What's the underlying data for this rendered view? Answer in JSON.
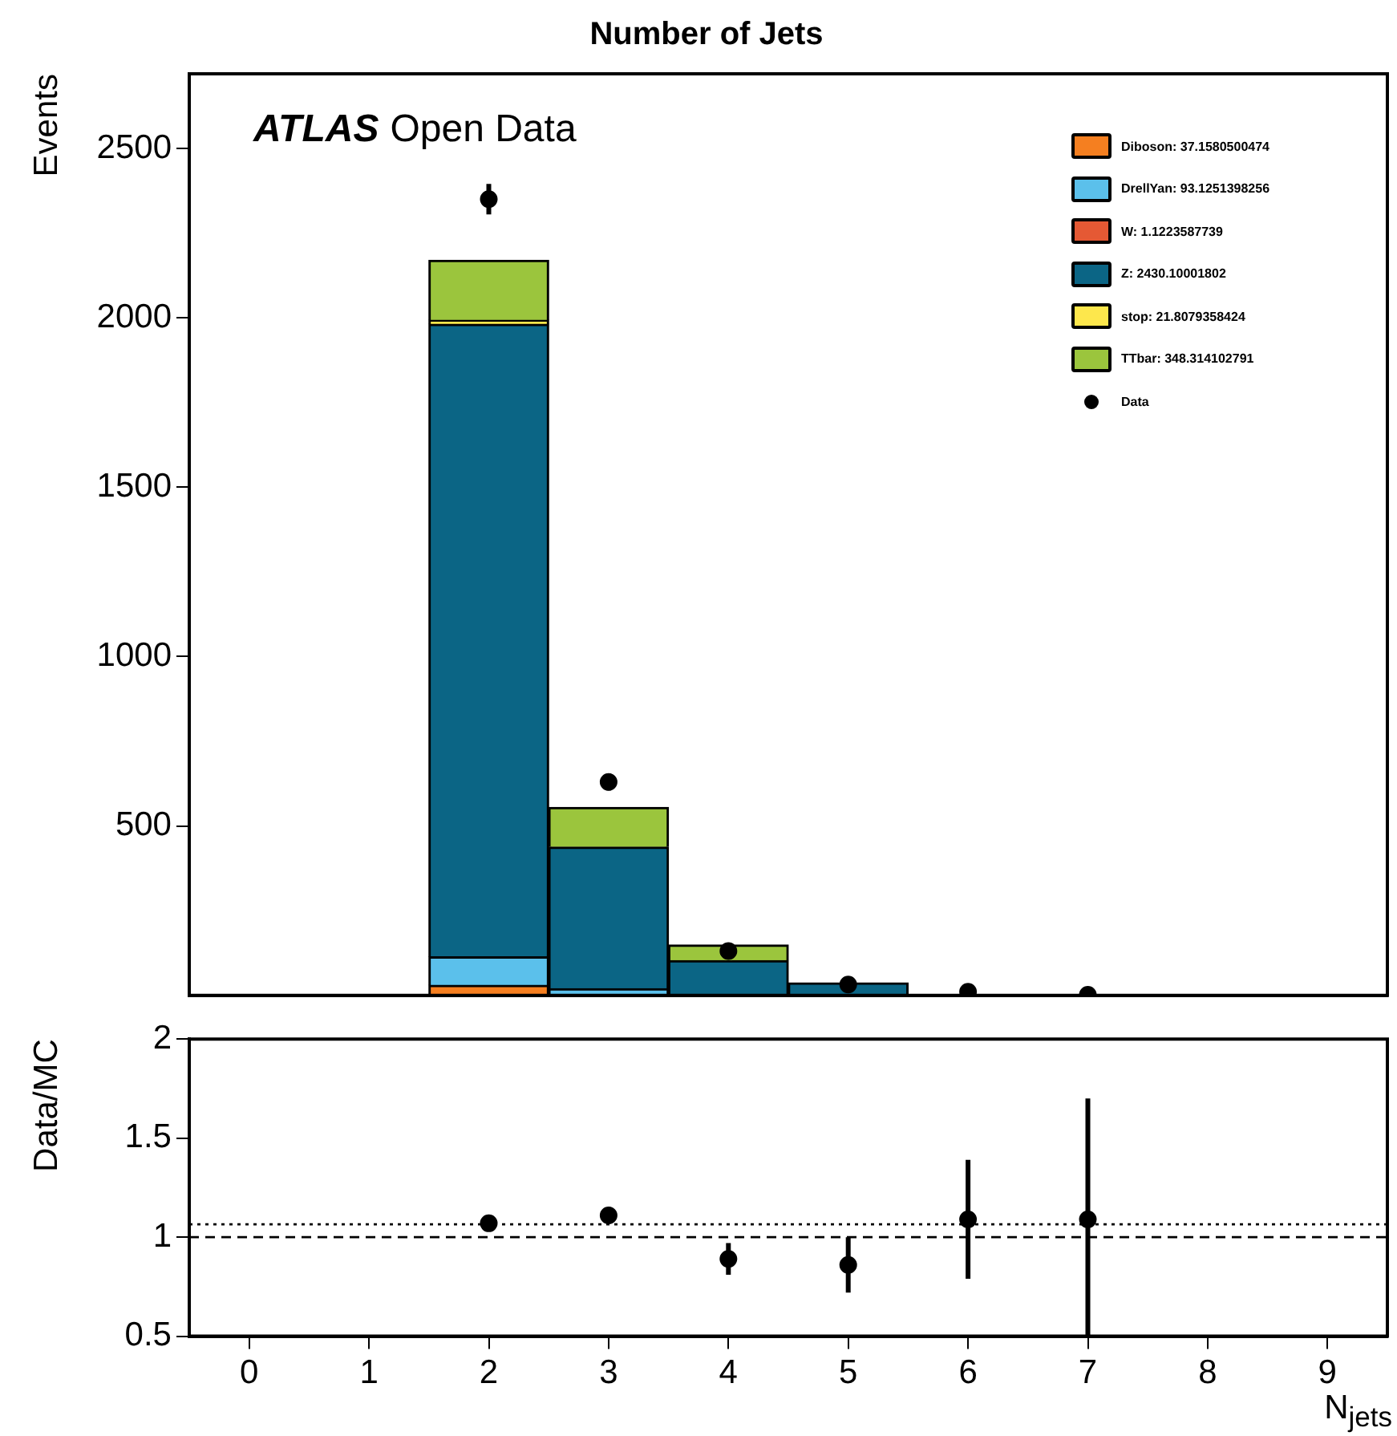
{
  "chart_data": [
    {
      "type": "bar",
      "title": "Number of Jets",
      "ylabel": "Events",
      "stacked": true,
      "categories": [
        "0",
        "1",
        "2",
        "3",
        "4",
        "5",
        "6",
        "7",
        "8",
        "9"
      ],
      "ylim": [
        0,
        2720
      ],
      "yticks": [
        500,
        1000,
        1500,
        2000,
        2500
      ],
      "tick_labels": "y",
      "grid": false,
      "legend": "top right",
      "marker": "circle",
      "annotations": [
        "ATLAS",
        "Open Data"
      ],
      "series": [
        {
          "name": "Diboson: 37.1580500474",
          "color": "#f57f20",
          "values": [
            null,
            null,
            30,
            null,
            null,
            null,
            null,
            null,
            null,
            null
          ]
        },
        {
          "name": "DrellYan: 93.1251398256",
          "color": "#5bc0eb",
          "values": [
            null,
            null,
            84,
            20,
            null,
            null,
            null,
            null,
            null,
            null
          ]
        },
        {
          "name": "W: 1.1223587739",
          "color": "#e55934",
          "values": [
            null,
            null,
            null,
            null,
            null,
            null,
            null,
            null,
            null,
            null
          ]
        },
        {
          "name": "Z: 2430.10001802",
          "color": "#0b6585",
          "values": [
            null,
            null,
            1867,
            418,
            103,
            37,
            null,
            null,
            null,
            null
          ]
        },
        {
          "name": "stop: 21.8079358424",
          "color": "#fde74c",
          "values": [
            null,
            null,
            12,
            null,
            null,
            null,
            null,
            null,
            null,
            null
          ]
        },
        {
          "name": "TTbar: 348.314102791",
          "color": "#9bc53d",
          "values": [
            null,
            null,
            177,
            117,
            46,
            null,
            null,
            null,
            null,
            null
          ]
        },
        {
          "name": "Data",
          "type": "scatter",
          "color": "#000000",
          "x": [
            "2",
            "3",
            "4",
            "5",
            "6",
            "7"
          ],
          "values": [
            2350,
            630,
            131,
            32,
            11,
            2
          ],
          "errors": [
            45,
            25,
            11,
            15,
            null,
            null
          ]
        }
      ]
    },
    {
      "type": "scatter",
      "ylabel": "Data/MC",
      "xlabel": "N$_{jets}$",
      "xlim": [
        -0.5,
        9.5
      ],
      "xticks": [
        0,
        1,
        2,
        3,
        4,
        5,
        6,
        7,
        8,
        9
      ],
      "ylim": [
        0.5,
        2
      ],
      "yticks": [
        0.5,
        1,
        1.5,
        2
      ],
      "grid": false,
      "marker": "circle",
      "ref_lines": [
        {
          "axis": "y",
          "value": 1,
          "line_style": "dashed",
          "color": "#000000"
        },
        {
          "axis": "y",
          "value": 1.065,
          "line_style": "dotted",
          "color": "#000000"
        }
      ],
      "series": [
        {
          "color": "#000000",
          "x": [
            2,
            3,
            4,
            5,
            6,
            7
          ],
          "values": [
            1.07,
            1.11,
            0.89,
            0.86,
            1.09,
            1.09
          ],
          "errors": [
            0.02,
            0.03,
            0.08,
            [
              0.72,
              1.0
            ],
            0.3,
            [
              0.5,
              1.7
            ]
          ]
        }
      ]
    }
  ]
}
